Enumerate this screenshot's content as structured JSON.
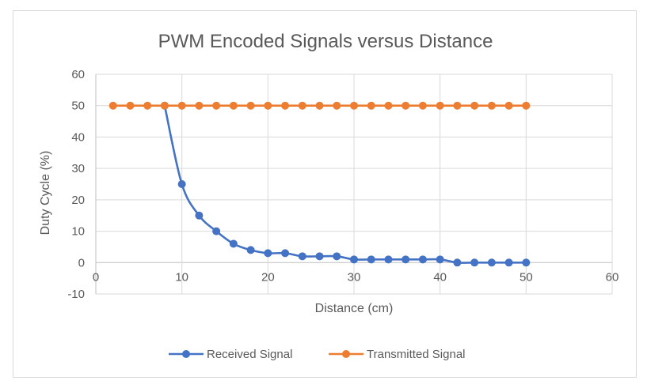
{
  "chart_data": {
    "type": "line",
    "title": "PWM Encoded Signals versus Distance",
    "xlabel": "Distance (cm)",
    "ylabel": "Duty Cycle (%)",
    "xlim": [
      0,
      60
    ],
    "ylim": [
      -10,
      60
    ],
    "xticks": [
      0,
      10,
      20,
      30,
      40,
      50,
      60
    ],
    "yticks": [
      -10,
      0,
      10,
      20,
      30,
      40,
      50,
      60
    ],
    "grid": true,
    "legend_position": "bottom",
    "series": [
      {
        "name": "Received Signal",
        "color": "#4472c4",
        "smooth": true,
        "x": [
          8,
          10,
          12,
          14,
          16,
          18,
          20,
          22,
          24,
          26,
          28,
          30,
          32,
          34,
          36,
          38,
          40,
          42,
          44,
          46,
          48,
          50
        ],
        "y": [
          50,
          25,
          15,
          10,
          6,
          4,
          3,
          3,
          2,
          2,
          2,
          1,
          1,
          1,
          1,
          1,
          1,
          0,
          0,
          0,
          0,
          0
        ]
      },
      {
        "name": "Transmitted Signal",
        "color": "#ed7d31",
        "smooth": false,
        "x": [
          2,
          4,
          6,
          8,
          10,
          12,
          14,
          16,
          18,
          20,
          22,
          24,
          26,
          28,
          30,
          32,
          34,
          36,
          38,
          40,
          42,
          44,
          46,
          48,
          50
        ],
        "y": [
          50,
          50,
          50,
          50,
          50,
          50,
          50,
          50,
          50,
          50,
          50,
          50,
          50,
          50,
          50,
          50,
          50,
          50,
          50,
          50,
          50,
          50,
          50,
          50,
          50
        ]
      }
    ]
  }
}
